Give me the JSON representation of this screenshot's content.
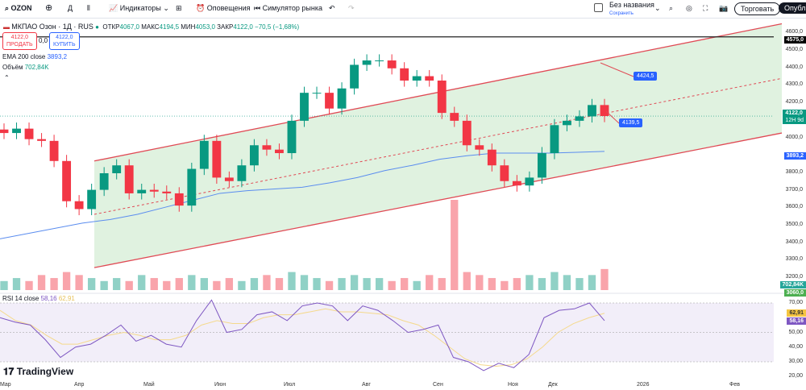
{
  "toolbar": {
    "symbol": "OZON",
    "interval": "Д",
    "indicators": "Индикаторы",
    "alerts": "Оповещения",
    "replay": "Симулятор рынка",
    "layout_name": "Без названия",
    "save": "Сохранить",
    "trade": "Торговать",
    "publish": "Опублик"
  },
  "header": {
    "title": "МКПАО Озон · 1Д · RUS",
    "open_label": "ОТКР",
    "open": "4067,0",
    "high_label": "МАКС",
    "high": "4194,5",
    "low_label": "МИН",
    "low": "4053,0",
    "close_label": "ЗАКР",
    "close": "4122,0",
    "change": "−70,5 (−1,68%)"
  },
  "trade": {
    "sell_price": "4122,0",
    "sell": "ПРОДАТЬ",
    "spread": "0,0",
    "buy_price": "4122,0",
    "buy": "КУПИТЬ"
  },
  "ema_legend": {
    "label": "EMA 200 close",
    "value": "3893,2"
  },
  "volume_legend": {
    "label": "Объём",
    "value": "702,84K"
  },
  "rsi_legend": {
    "label": "RSI 14 close",
    "value": "58,16",
    "ma": "62,91"
  },
  "logo": "TradingView",
  "colors": {
    "up": "#089981",
    "down": "#f23645",
    "ema": "#5b8def",
    "channel": "#e04a55",
    "channel_fill": "#d8efd8",
    "rsi": "#7e57c2",
    "rsi_ma": "#f5d98c"
  },
  "chart_data": {
    "type": "candlestick",
    "ylim": [
      3150,
      4640
    ],
    "price_ticks": [
      "4600,0",
      "4500,0",
      "4400,0",
      "4300,0",
      "4200,0",
      "4000,0",
      "3800,0",
      "3700,0",
      "3600,0",
      "3500,0",
      "3400,0",
      "3300,0",
      "3200,0"
    ],
    "price_tick_values": [
      4600,
      4500,
      4400,
      4300,
      4200,
      4000,
      3800,
      3700,
      3600,
      3500,
      3400,
      3300,
      3200
    ],
    "time_labels": [
      "Мар",
      "Апр",
      "Май",
      "Июн",
      "Июл",
      "Авг",
      "Сен",
      "Ноя",
      "Дек",
      "2026",
      "Фев"
    ],
    "closes": [
      4025,
      4050,
      3990,
      3980,
      3865,
      3635,
      3590,
      3700,
      3795,
      3840,
      3680,
      3700,
      3690,
      3680,
      3610,
      3820,
      3980,
      3770,
      3750,
      3840,
      3955,
      3930,
      3910,
      4095,
      4255,
      4255,
      4165,
      4280,
      4415,
      4440,
      4440,
      4395,
      4325,
      4350,
      4325,
      4140,
      4095,
      3955,
      3930,
      3840,
      3750,
      3725,
      3770,
      3910,
      4070,
      4095,
      4120,
      4185,
      4122
    ],
    "ema": [
      3420,
      3450,
      3480,
      3510,
      3530,
      3560,
      3600,
      3640,
      3680,
      3695,
      3705,
      3715,
      3740,
      3770,
      3810,
      3840,
      3875,
      3895,
      3910,
      3910,
      3910,
      3915,
      3920
    ],
    "volume": [
      3,
      4,
      3,
      5,
      4,
      6,
      5,
      4,
      3,
      4,
      3,
      5,
      4,
      3,
      4,
      5,
      4,
      3,
      4,
      3,
      4,
      5,
      4,
      6,
      5,
      4,
      3,
      4,
      5,
      4,
      4,
      3,
      4,
      3,
      5,
      4,
      30,
      6,
      5,
      4,
      3,
      4,
      5,
      4,
      6,
      5,
      4,
      5,
      7
    ],
    "rsi": [
      60,
      57,
      55,
      45,
      33,
      40,
      42,
      48,
      55,
      44,
      48,
      42,
      40,
      58,
      72,
      50,
      52,
      62,
      64,
      58,
      68,
      70,
      68,
      58,
      68,
      65,
      58,
      50,
      52,
      55,
      33,
      30,
      24,
      29,
      26,
      35,
      60,
      65,
      66,
      70,
      58
    ],
    "rsi_ma": [
      65,
      58,
      55,
      48,
      42,
      42,
      45,
      48,
      50,
      48,
      45,
      45,
      48,
      55,
      58,
      56,
      56,
      60,
      62,
      62,
      64,
      66,
      64,
      64,
      63,
      62,
      58,
      55,
      48,
      40,
      32,
      28,
      27,
      28,
      32,
      40,
      50,
      56,
      60,
      63
    ],
    "rsi_ticks": [
      "70,00",
      "50,00",
      "40,00",
      "30,00",
      "20,00"
    ],
    "rsi_tick_values": [
      70,
      50,
      40,
      30,
      20
    ],
    "channel": {
      "upper_start": 3865,
      "upper_end": 4650,
      "lower_start": 3255,
      "lower_end": 4025
    },
    "horizontal_line": "4575,0",
    "horizontal_value": 4575,
    "last_price": "4122,0",
    "countdown": "12H 9d",
    "ema_tag": "3893,2",
    "volume_tag": "702,84K",
    "volume_tag2": "3060,0",
    "rsi_tag": "58,16",
    "rsi_ma_tag": "62,91",
    "callouts": [
      "4424,5",
      "4139,5"
    ]
  }
}
